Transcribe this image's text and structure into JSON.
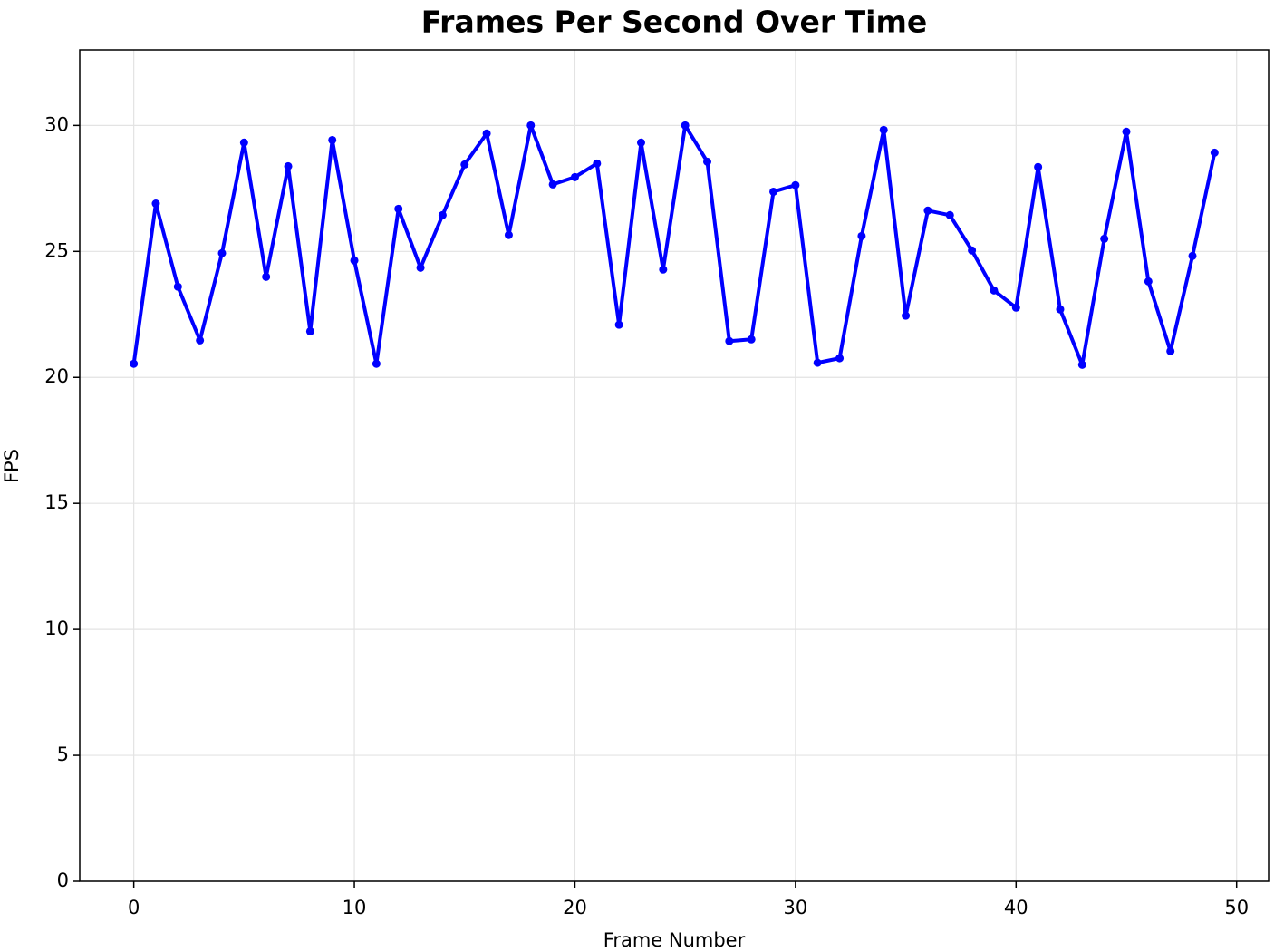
{
  "chart_data": {
    "type": "line",
    "title": "Frames Per Second Over Time",
    "xlabel": "Frame Number",
    "ylabel": "FPS",
    "x": [
      0,
      1,
      2,
      3,
      4,
      5,
      6,
      7,
      8,
      9,
      10,
      11,
      12,
      13,
      14,
      15,
      16,
      17,
      18,
      19,
      20,
      21,
      22,
      23,
      24,
      25,
      26,
      27,
      28,
      29,
      30,
      31,
      32,
      33,
      34,
      35,
      36,
      37,
      38,
      39,
      40,
      41,
      42,
      43,
      44,
      45,
      46,
      47,
      48,
      49
    ],
    "series": [
      {
        "name": "FPS",
        "color": "#0000ff",
        "values": [
          20.54,
          26.9,
          23.6,
          21.47,
          24.93,
          29.32,
          23.99,
          28.38,
          21.83,
          29.42,
          24.64,
          20.54,
          26.69,
          24.35,
          26.44,
          28.45,
          29.68,
          25.65,
          30.0,
          27.66,
          27.95,
          28.49,
          22.09,
          29.32,
          24.28,
          30.0,
          28.56,
          21.44,
          21.51,
          27.37,
          27.63,
          20.58,
          20.76,
          25.61,
          29.82,
          22.45,
          26.62,
          26.44,
          25.04,
          23.45,
          22.77,
          28.35,
          22.7,
          20.5,
          25.5,
          29.75,
          23.81,
          21.04,
          24.82,
          28.92
        ]
      }
    ],
    "xlim": [
      -2.45,
      51.45
    ],
    "xticks": [
      0,
      10,
      20,
      30,
      40,
      50
    ],
    "ylim": [
      0,
      33
    ],
    "yticks": [
      0,
      5,
      10,
      15,
      20,
      25,
      30
    ],
    "grid": true
  }
}
